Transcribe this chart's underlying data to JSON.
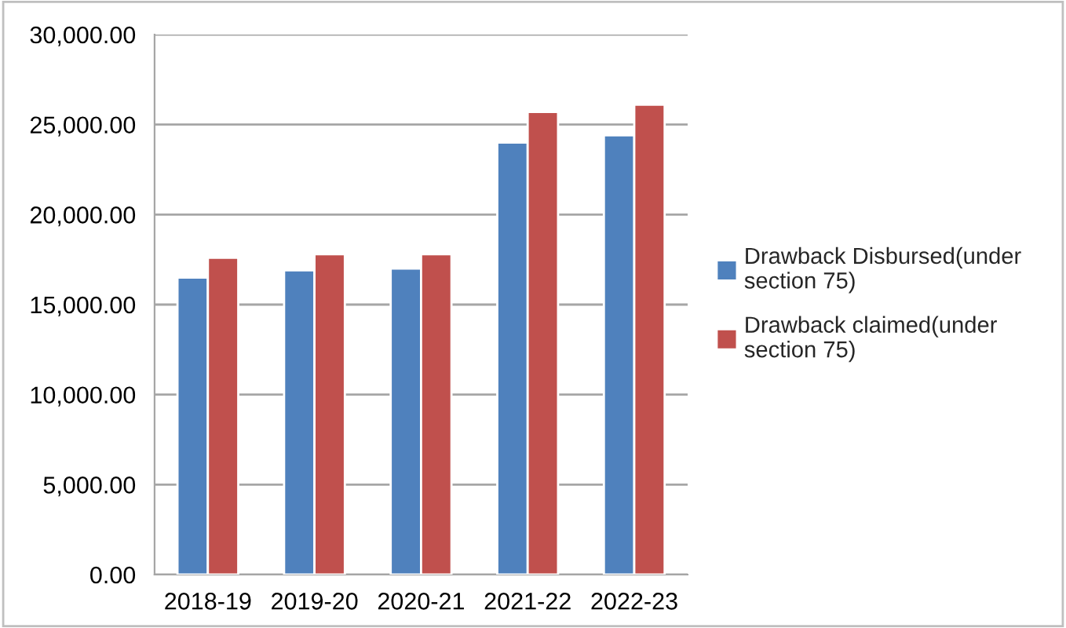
{
  "chart_data": {
    "type": "bar",
    "categories": [
      "2018-19",
      "2019-20",
      "2020-21",
      "2021-22",
      "2022-23"
    ],
    "series": [
      {
        "name": "Drawback Disbursed(under\nsection 75)",
        "color": "#4f81bd",
        "values": [
          16500,
          16900,
          17000,
          24000,
          24400
        ]
      },
      {
        "name": "Drawback claimed(under\nsection 75)",
        "color": "#c0504d",
        "values": [
          17600,
          17800,
          17800,
          25700,
          26100
        ]
      }
    ],
    "ylim": [
      0,
      30000
    ],
    "yticks": [
      {
        "value": 0,
        "label": "0.00"
      },
      {
        "value": 5000,
        "label": "5,000.00"
      },
      {
        "value": 10000,
        "label": "10,000.00"
      },
      {
        "value": 15000,
        "label": "15,000.00"
      },
      {
        "value": 20000,
        "label": "20,000.00"
      },
      {
        "value": 25000,
        "label": "25,000.00"
      },
      {
        "value": 30000,
        "label": "30,000.00"
      }
    ],
    "grid": "y",
    "legend": "right"
  }
}
